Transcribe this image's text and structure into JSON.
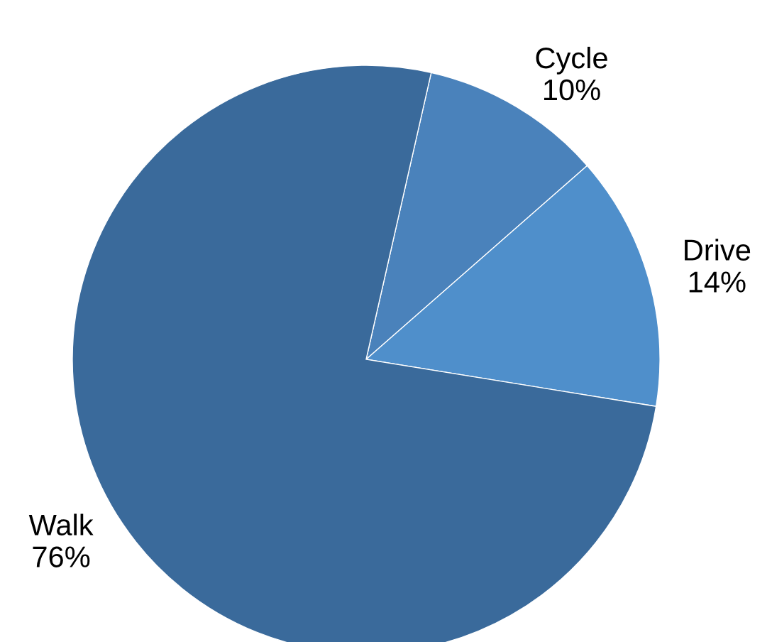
{
  "chart_data": {
    "type": "pie",
    "categories": [
      "Cycle",
      "Drive",
      "Walk"
    ],
    "values": [
      10,
      14,
      76
    ],
    "value_labels": [
      "10%",
      "14%",
      "76%"
    ],
    "colors": [
      "#4a82bb",
      "#4f8fcb",
      "#3a6a9b"
    ]
  }
}
